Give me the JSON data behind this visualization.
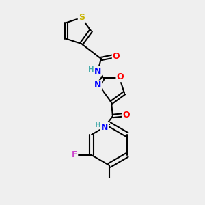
{
  "bg_color": "#efefef",
  "bond_color": "#000000",
  "atom_colors": {
    "S": "#c8b400",
    "O": "#ff0000",
    "N": "#0000ff",
    "F": "#cc44cc",
    "H": "#44aaaa",
    "C": "#000000"
  },
  "title": "",
  "figsize": [
    3.0,
    3.0
  ],
  "dpi": 100
}
